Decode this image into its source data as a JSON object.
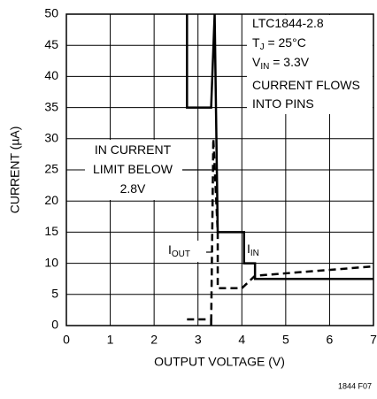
{
  "chart_data": {
    "type": "line",
    "xlabel": "OUTPUT VOLTAGE (V)",
    "ylabel": "CURRENT (µA)",
    "xlim": [
      0,
      7
    ],
    "xticks": [
      0,
      1,
      2,
      3,
      4,
      5,
      6,
      7
    ],
    "ylim": [
      0,
      50
    ],
    "yticks": [
      0,
      5,
      10,
      15,
      20,
      25,
      30,
      35,
      40,
      45,
      50
    ],
    "grid": true,
    "series": [
      {
        "name": "I",
        "name_sub": "IN",
        "color": "#000000",
        "dash": false,
        "x": [
          2.75,
          2.75,
          3.3,
          3.38,
          3.45,
          4.05,
          4.05,
          4.3,
          4.3,
          7
        ],
        "values": [
          50,
          35,
          35,
          50,
          15,
          15,
          10,
          10,
          7.5,
          7.5
        ]
      },
      {
        "name": "I",
        "name_sub": "OUT",
        "color": "#000000",
        "dash": true,
        "x": [
          2.75,
          3.3,
          3.3,
          3.35,
          3.45,
          3.45,
          4.0,
          4.3,
          7
        ],
        "values": [
          1,
          1,
          0,
          30,
          15,
          6,
          6,
          8,
          9.5
        ]
      }
    ],
    "annotations": [
      {
        "text": "LTC1844-2.8"
      },
      {
        "text": "T",
        "sub": "J",
        "rest": " = 25°C"
      },
      {
        "text": "V",
        "sub": "IN",
        "rest": " = 3.3V"
      },
      {
        "text": "CURRENT FLOWS"
      },
      {
        "text": "INTO PINS"
      },
      {
        "text": "IN CURRENT"
      },
      {
        "text": "LIMIT BELOW"
      },
      {
        "text": "2.8V"
      }
    ],
    "footnote": "1844 F07"
  }
}
